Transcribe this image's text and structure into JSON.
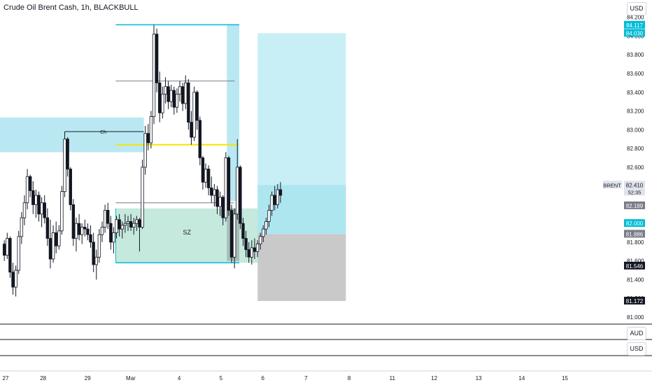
{
  "header": {
    "title": "Crude Oil Brent Cash, 1h, BLACKBULL",
    "currency_main": "USD"
  },
  "panes": {
    "currency_1": "AUD",
    "currency_2": "USD"
  },
  "labels": {
    "ch": "Ch",
    "sz": "SZ",
    "symbol": "BRENT",
    "countdown": "52:35"
  },
  "colors": {
    "zone_blue": "#b9e8f2",
    "zone_green": "#c6e9dd",
    "target_blue": "#aee6f0",
    "stop_grey": "#c9c9c9",
    "cyan": "#00bcd4",
    "yellow": "#f5e500",
    "candle": "#131722"
  },
  "chart_data": {
    "type": "candlestick",
    "y_axis": {
      "ylim": [
        81.0,
        84.25
      ],
      "ticks": [
        "84.200",
        "84.000",
        "83.800",
        "83.600",
        "83.400",
        "83.200",
        "83.000",
        "82.800",
        "82.600",
        "82.400",
        "82.200",
        "82.000",
        "81.800",
        "81.600",
        "81.400",
        "81.200",
        "81.000"
      ]
    },
    "x_axis": {
      "xlim": [
        0,
        45.9
      ],
      "ticks": [
        {
          "label": "27",
          "x": 0
        },
        {
          "label": "28",
          "x": 3.3
        },
        {
          "label": "29",
          "x": 6.7
        },
        {
          "label": "Mar",
          "x": 10
        },
        {
          "label": "4",
          "x": 13.7
        },
        {
          "label": "5",
          "x": 16.9
        },
        {
          "label": "6",
          "x": 20.1
        },
        {
          "label": "7",
          "x": 23.4
        },
        {
          "label": "8",
          "x": 26.7
        },
        {
          "label": "11",
          "x": 30
        },
        {
          "label": "12",
          "x": 33.2
        },
        {
          "label": "13",
          "x": 36.6
        },
        {
          "label": "14",
          "x": 39.9
        },
        {
          "label": "15",
          "x": 43.2
        }
      ]
    },
    "candles": [
      {
        "x": 0.33,
        "o": 81.78,
        "h": 81.82,
        "l": 81.6,
        "c": 81.66
      },
      {
        "x": 0.55,
        "o": 81.66,
        "h": 81.9,
        "l": 81.62,
        "c": 81.84
      },
      {
        "x": 0.77,
        "o": 81.84,
        "h": 81.86,
        "l": 81.42,
        "c": 81.48
      },
      {
        "x": 0.99,
        "o": 81.48,
        "h": 81.58,
        "l": 81.24,
        "c": 81.32
      },
      {
        "x": 1.21,
        "o": 81.32,
        "h": 81.55,
        "l": 81.22,
        "c": 81.5
      },
      {
        "x": 1.43,
        "o": 81.5,
        "h": 81.92,
        "l": 81.46,
        "c": 81.86
      },
      {
        "x": 1.65,
        "o": 81.86,
        "h": 82.12,
        "l": 81.78,
        "c": 82.06
      },
      {
        "x": 1.87,
        "o": 82.06,
        "h": 82.3,
        "l": 81.98,
        "c": 82.22
      },
      {
        "x": 2.09,
        "o": 82.22,
        "h": 82.58,
        "l": 82.15,
        "c": 82.5
      },
      {
        "x": 2.31,
        "o": 82.5,
        "h": 82.52,
        "l": 82.28,
        "c": 82.35
      },
      {
        "x": 2.53,
        "o": 82.35,
        "h": 82.45,
        "l": 82.1,
        "c": 82.2
      },
      {
        "x": 2.75,
        "o": 82.2,
        "h": 82.36,
        "l": 82.06,
        "c": 82.3
      },
      {
        "x": 2.97,
        "o": 82.3,
        "h": 82.34,
        "l": 82.02,
        "c": 82.1
      },
      {
        "x": 3.19,
        "o": 82.1,
        "h": 82.28,
        "l": 81.96,
        "c": 82.22
      },
      {
        "x": 3.41,
        "o": 82.22,
        "h": 82.3,
        "l": 82.0,
        "c": 82.06
      },
      {
        "x": 3.63,
        "o": 82.06,
        "h": 82.16,
        "l": 81.76,
        "c": 81.84
      },
      {
        "x": 3.85,
        "o": 81.84,
        "h": 82.04,
        "l": 81.52,
        "c": 81.62
      },
      {
        "x": 4.07,
        "o": 81.62,
        "h": 81.98,
        "l": 81.58,
        "c": 81.9
      },
      {
        "x": 4.29,
        "o": 81.9,
        "h": 82.02,
        "l": 81.68,
        "c": 81.76
      },
      {
        "x": 4.51,
        "o": 81.76,
        "h": 81.98,
        "l": 81.72,
        "c": 81.92
      },
      {
        "x": 4.73,
        "o": 81.92,
        "h": 82.4,
        "l": 81.88,
        "c": 82.34
      },
      {
        "x": 4.95,
        "o": 82.34,
        "h": 82.98,
        "l": 82.28,
        "c": 82.9
      },
      {
        "x": 5.17,
        "o": 82.9,
        "h": 82.92,
        "l": 82.5,
        "c": 82.58
      },
      {
        "x": 5.39,
        "o": 82.58,
        "h": 82.6,
        "l": 82.14,
        "c": 82.2
      },
      {
        "x": 5.61,
        "o": 82.2,
        "h": 82.26,
        "l": 81.76,
        "c": 81.84
      },
      {
        "x": 5.83,
        "o": 81.84,
        "h": 82.06,
        "l": 81.7,
        "c": 82.0
      },
      {
        "x": 6.05,
        "o": 82.0,
        "h": 82.1,
        "l": 81.82,
        "c": 81.88
      },
      {
        "x": 6.27,
        "o": 81.88,
        "h": 82.0,
        "l": 81.78,
        "c": 81.96
      },
      {
        "x": 6.49,
        "o": 81.96,
        "h": 82.04,
        "l": 81.86,
        "c": 81.94
      },
      {
        "x": 6.71,
        "o": 81.94,
        "h": 82.0,
        "l": 81.82,
        "c": 81.88
      },
      {
        "x": 6.93,
        "o": 81.88,
        "h": 81.98,
        "l": 81.74,
        "c": 81.8
      },
      {
        "x": 7.15,
        "o": 81.8,
        "h": 81.9,
        "l": 81.48,
        "c": 81.56
      },
      {
        "x": 7.37,
        "o": 81.56,
        "h": 81.72,
        "l": 81.4,
        "c": 81.64
      },
      {
        "x": 7.59,
        "o": 81.64,
        "h": 81.94,
        "l": 81.58,
        "c": 81.88
      },
      {
        "x": 7.81,
        "o": 81.88,
        "h": 82.02,
        "l": 81.8,
        "c": 81.96
      },
      {
        "x": 8.03,
        "o": 81.96,
        "h": 82.2,
        "l": 81.9,
        "c": 82.14
      },
      {
        "x": 8.25,
        "o": 82.14,
        "h": 82.22,
        "l": 81.94,
        "c": 82.0
      },
      {
        "x": 8.47,
        "o": 82.0,
        "h": 82.08,
        "l": 81.72,
        "c": 81.8
      },
      {
        "x": 8.69,
        "o": 81.8,
        "h": 81.96,
        "l": 81.68,
        "c": 81.9
      },
      {
        "x": 8.91,
        "o": 81.9,
        "h": 82.08,
        "l": 81.84,
        "c": 82.04
      },
      {
        "x": 9.13,
        "o": 82.04,
        "h": 82.1,
        "l": 81.86,
        "c": 81.94
      },
      {
        "x": 9.35,
        "o": 81.94,
        "h": 82.02,
        "l": 81.84,
        "c": 81.98
      },
      {
        "x": 9.57,
        "o": 81.98,
        "h": 82.1,
        "l": 81.9,
        "c": 82.0
      },
      {
        "x": 9.79,
        "o": 82.0,
        "h": 82.08,
        "l": 81.92,
        "c": 82.02
      },
      {
        "x": 10.01,
        "o": 82.02,
        "h": 82.1,
        "l": 81.92,
        "c": 81.96
      },
      {
        "x": 10.23,
        "o": 81.96,
        "h": 82.06,
        "l": 81.88,
        "c": 82.0
      },
      {
        "x": 10.45,
        "o": 82.0,
        "h": 82.08,
        "l": 81.92,
        "c": 82.04
      },
      {
        "x": 10.67,
        "o": 82.04,
        "h": 82.06,
        "l": 81.7,
        "c": 81.96
      },
      {
        "x": 10.89,
        "o": 81.96,
        "h": 82.68,
        "l": 81.94,
        "c": 82.6
      },
      {
        "x": 11.11,
        "o": 82.6,
        "h": 83.04,
        "l": 82.52,
        "c": 82.96
      },
      {
        "x": 11.33,
        "o": 82.96,
        "h": 83.06,
        "l": 82.78,
        "c": 82.86
      },
      {
        "x": 11.55,
        "o": 82.86,
        "h": 83.2,
        "l": 82.8,
        "c": 83.14
      },
      {
        "x": 11.77,
        "o": 83.14,
        "h": 84.12,
        "l": 83.06,
        "c": 84.02
      },
      {
        "x": 11.99,
        "o": 84.02,
        "h": 84.08,
        "l": 83.4,
        "c": 83.5
      },
      {
        "x": 12.21,
        "o": 83.5,
        "h": 83.62,
        "l": 83.08,
        "c": 83.18
      },
      {
        "x": 12.43,
        "o": 83.18,
        "h": 83.46,
        "l": 83.12,
        "c": 83.38
      },
      {
        "x": 12.65,
        "o": 83.38,
        "h": 83.56,
        "l": 83.28,
        "c": 83.46
      },
      {
        "x": 12.87,
        "o": 83.46,
        "h": 83.52,
        "l": 83.22,
        "c": 83.3
      },
      {
        "x": 13.09,
        "o": 83.3,
        "h": 83.48,
        "l": 83.24,
        "c": 83.42
      },
      {
        "x": 13.31,
        "o": 83.42,
        "h": 83.46,
        "l": 83.16,
        "c": 83.24
      },
      {
        "x": 13.53,
        "o": 83.24,
        "h": 83.44,
        "l": 83.18,
        "c": 83.38
      },
      {
        "x": 13.75,
        "o": 83.38,
        "h": 83.52,
        "l": 83.3,
        "c": 83.46
      },
      {
        "x": 13.97,
        "o": 83.46,
        "h": 83.5,
        "l": 83.2,
        "c": 83.28
      },
      {
        "x": 14.19,
        "o": 83.28,
        "h": 83.58,
        "l": 83.22,
        "c": 83.5
      },
      {
        "x": 14.41,
        "o": 83.5,
        "h": 83.54,
        "l": 83.0,
        "c": 83.08
      },
      {
        "x": 14.63,
        "o": 83.08,
        "h": 83.2,
        "l": 82.84,
        "c": 82.92
      },
      {
        "x": 14.85,
        "o": 82.92,
        "h": 83.46,
        "l": 82.88,
        "c": 83.4
      },
      {
        "x": 15.07,
        "o": 83.4,
        "h": 83.42,
        "l": 83.0,
        "c": 83.1
      },
      {
        "x": 15.29,
        "o": 83.1,
        "h": 83.14,
        "l": 82.62,
        "c": 82.7
      },
      {
        "x": 15.51,
        "o": 82.7,
        "h": 82.72,
        "l": 82.36,
        "c": 82.44
      },
      {
        "x": 15.73,
        "o": 82.44,
        "h": 82.64,
        "l": 82.38,
        "c": 82.58
      },
      {
        "x": 15.95,
        "o": 82.58,
        "h": 82.62,
        "l": 82.3,
        "c": 82.38
      },
      {
        "x": 16.17,
        "o": 82.38,
        "h": 82.5,
        "l": 82.22,
        "c": 82.3
      },
      {
        "x": 16.39,
        "o": 82.3,
        "h": 82.42,
        "l": 82.18,
        "c": 82.36
      },
      {
        "x": 16.61,
        "o": 82.36,
        "h": 82.4,
        "l": 82.1,
        "c": 82.18
      },
      {
        "x": 16.83,
        "o": 82.18,
        "h": 82.34,
        "l": 82.08,
        "c": 82.28
      },
      {
        "x": 17.05,
        "o": 82.28,
        "h": 82.3,
        "l": 81.98,
        "c": 82.06
      },
      {
        "x": 17.27,
        "o": 82.06,
        "h": 82.76,
        "l": 82.02,
        "c": 82.7
      },
      {
        "x": 17.49,
        "o": 82.7,
        "h": 82.72,
        "l": 82.08,
        "c": 82.14
      },
      {
        "x": 17.71,
        "o": 82.14,
        "h": 82.2,
        "l": 81.58,
        "c": 81.64
      },
      {
        "x": 17.93,
        "o": 81.64,
        "h": 82.16,
        "l": 81.52,
        "c": 82.1
      },
      {
        "x": 18.15,
        "o": 82.1,
        "h": 82.9,
        "l": 82.04,
        "c": 82.6
      },
      {
        "x": 18.37,
        "o": 82.6,
        "h": 82.62,
        "l": 81.94,
        "c": 82.0
      },
      {
        "x": 18.59,
        "o": 82.0,
        "h": 82.06,
        "l": 81.76,
        "c": 81.84
      },
      {
        "x": 18.81,
        "o": 81.84,
        "h": 81.92,
        "l": 81.64,
        "c": 81.72
      },
      {
        "x": 19.03,
        "o": 81.72,
        "h": 81.8,
        "l": 81.58,
        "c": 81.64
      },
      {
        "x": 19.25,
        "o": 81.64,
        "h": 81.82,
        "l": 81.56,
        "c": 81.74
      },
      {
        "x": 19.47,
        "o": 81.74,
        "h": 81.84,
        "l": 81.62,
        "c": 81.7
      },
      {
        "x": 19.69,
        "o": 81.7,
        "h": 81.82,
        "l": 81.64,
        "c": 81.78
      },
      {
        "x": 19.91,
        "o": 81.78,
        "h": 81.9,
        "l": 81.72,
        "c": 81.86
      },
      {
        "x": 20.13,
        "o": 81.86,
        "h": 81.98,
        "l": 81.8,
        "c": 81.94
      },
      {
        "x": 20.35,
        "o": 81.94,
        "h": 82.06,
        "l": 81.88,
        "c": 82.02
      },
      {
        "x": 20.57,
        "o": 82.02,
        "h": 82.2,
        "l": 81.96,
        "c": 82.14
      },
      {
        "x": 20.79,
        "o": 82.14,
        "h": 82.34,
        "l": 82.08,
        "c": 82.3
      },
      {
        "x": 21.01,
        "o": 82.3,
        "h": 82.4,
        "l": 82.14,
        "c": 82.2
      },
      {
        "x": 21.23,
        "o": 82.2,
        "h": 82.42,
        "l": 82.16,
        "c": 82.36
      },
      {
        "x": 21.45,
        "o": 82.36,
        "h": 82.44,
        "l": 82.22,
        "c": 82.3
      }
    ],
    "zones": [
      {
        "name": "resistance-zone",
        "x0": -1,
        "x1": 11.0,
        "y0": 82.76,
        "y1": 83.13
      },
      {
        "name": "supply-box-top",
        "x0": 8.85,
        "x1": 18.3,
        "y0": 82.24,
        "y1": 84.12
      },
      {
        "name": "cyan-column",
        "x0": 17.35,
        "x1": 18.3,
        "y0": 82.24,
        "y1": 84.12
      },
      {
        "name": "sz-demand-zone",
        "x0": 8.85,
        "x1": 19.8,
        "y0": 81.58,
        "y1": 82.16
      },
      {
        "name": "grey-overlap",
        "x0": 17.35,
        "x1": 18.3,
        "y0": 81.6,
        "y1": 82.16
      },
      {
        "name": "target-zone",
        "x0": 19.7,
        "x1": 26.45,
        "y0": 82.0,
        "y1": 84.03
      },
      {
        "name": "position-entry",
        "x0": 19.7,
        "x1": 26.45,
        "y0": 81.886,
        "y1": 82.41
      },
      {
        "name": "stop-zone",
        "x0": 19.7,
        "x1": 26.45,
        "y0": 81.172,
        "y1": 81.886
      }
    ],
    "price_labels": [
      {
        "value": "84.117",
        "y": 84.117,
        "color": "#00bcd4"
      },
      {
        "value": "84.030",
        "y": 84.03,
        "color": "#00bcd4"
      },
      {
        "value": "82.410",
        "y": 82.41,
        "color": "#e0e3eb"
      },
      {
        "value": "82.189",
        "y": 82.189,
        "color": "#787b86"
      },
      {
        "value": "82.000",
        "y": 82.0,
        "color": "#00bcd4"
      },
      {
        "value": "81.886",
        "y": 81.886,
        "color": "#787b86"
      },
      {
        "value": "81.546",
        "y": 81.546,
        "color": "#131722"
      },
      {
        "value": "81.172",
        "y": 81.172,
        "color": "#131722"
      }
    ]
  }
}
